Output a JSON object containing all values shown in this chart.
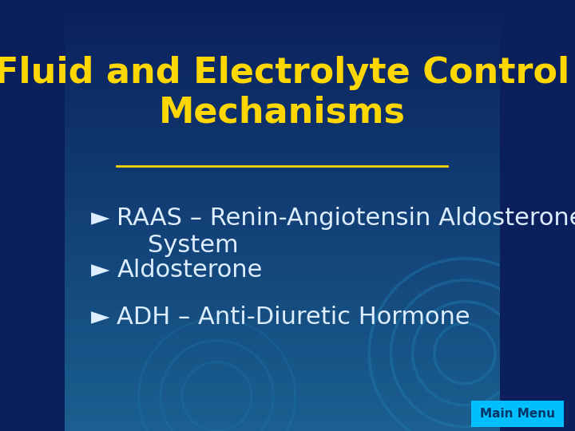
{
  "title_line1": "Fluid and Electrolyte Control",
  "title_line2": "Mechanisms",
  "title_color": "#FFD700",
  "title_fontsize": 32,
  "title_underline": true,
  "bullet_symbol": "►",
  "bullets": [
    "RAAS – Renin-Angiotensin Aldosterone\n    System",
    "Aldosterone",
    "ADH – Anti-Diuretic Hormone"
  ],
  "bullet_color": "#DDEEFF",
  "bullet_fontsize": 22,
  "bg_color_top": "#0a1f5c",
  "bg_color_bottom": "#1a6090",
  "main_menu_text": "Main Menu",
  "main_menu_bg": "#00BFFF",
  "main_menu_text_color": "#003366",
  "main_menu_fontsize": 11
}
